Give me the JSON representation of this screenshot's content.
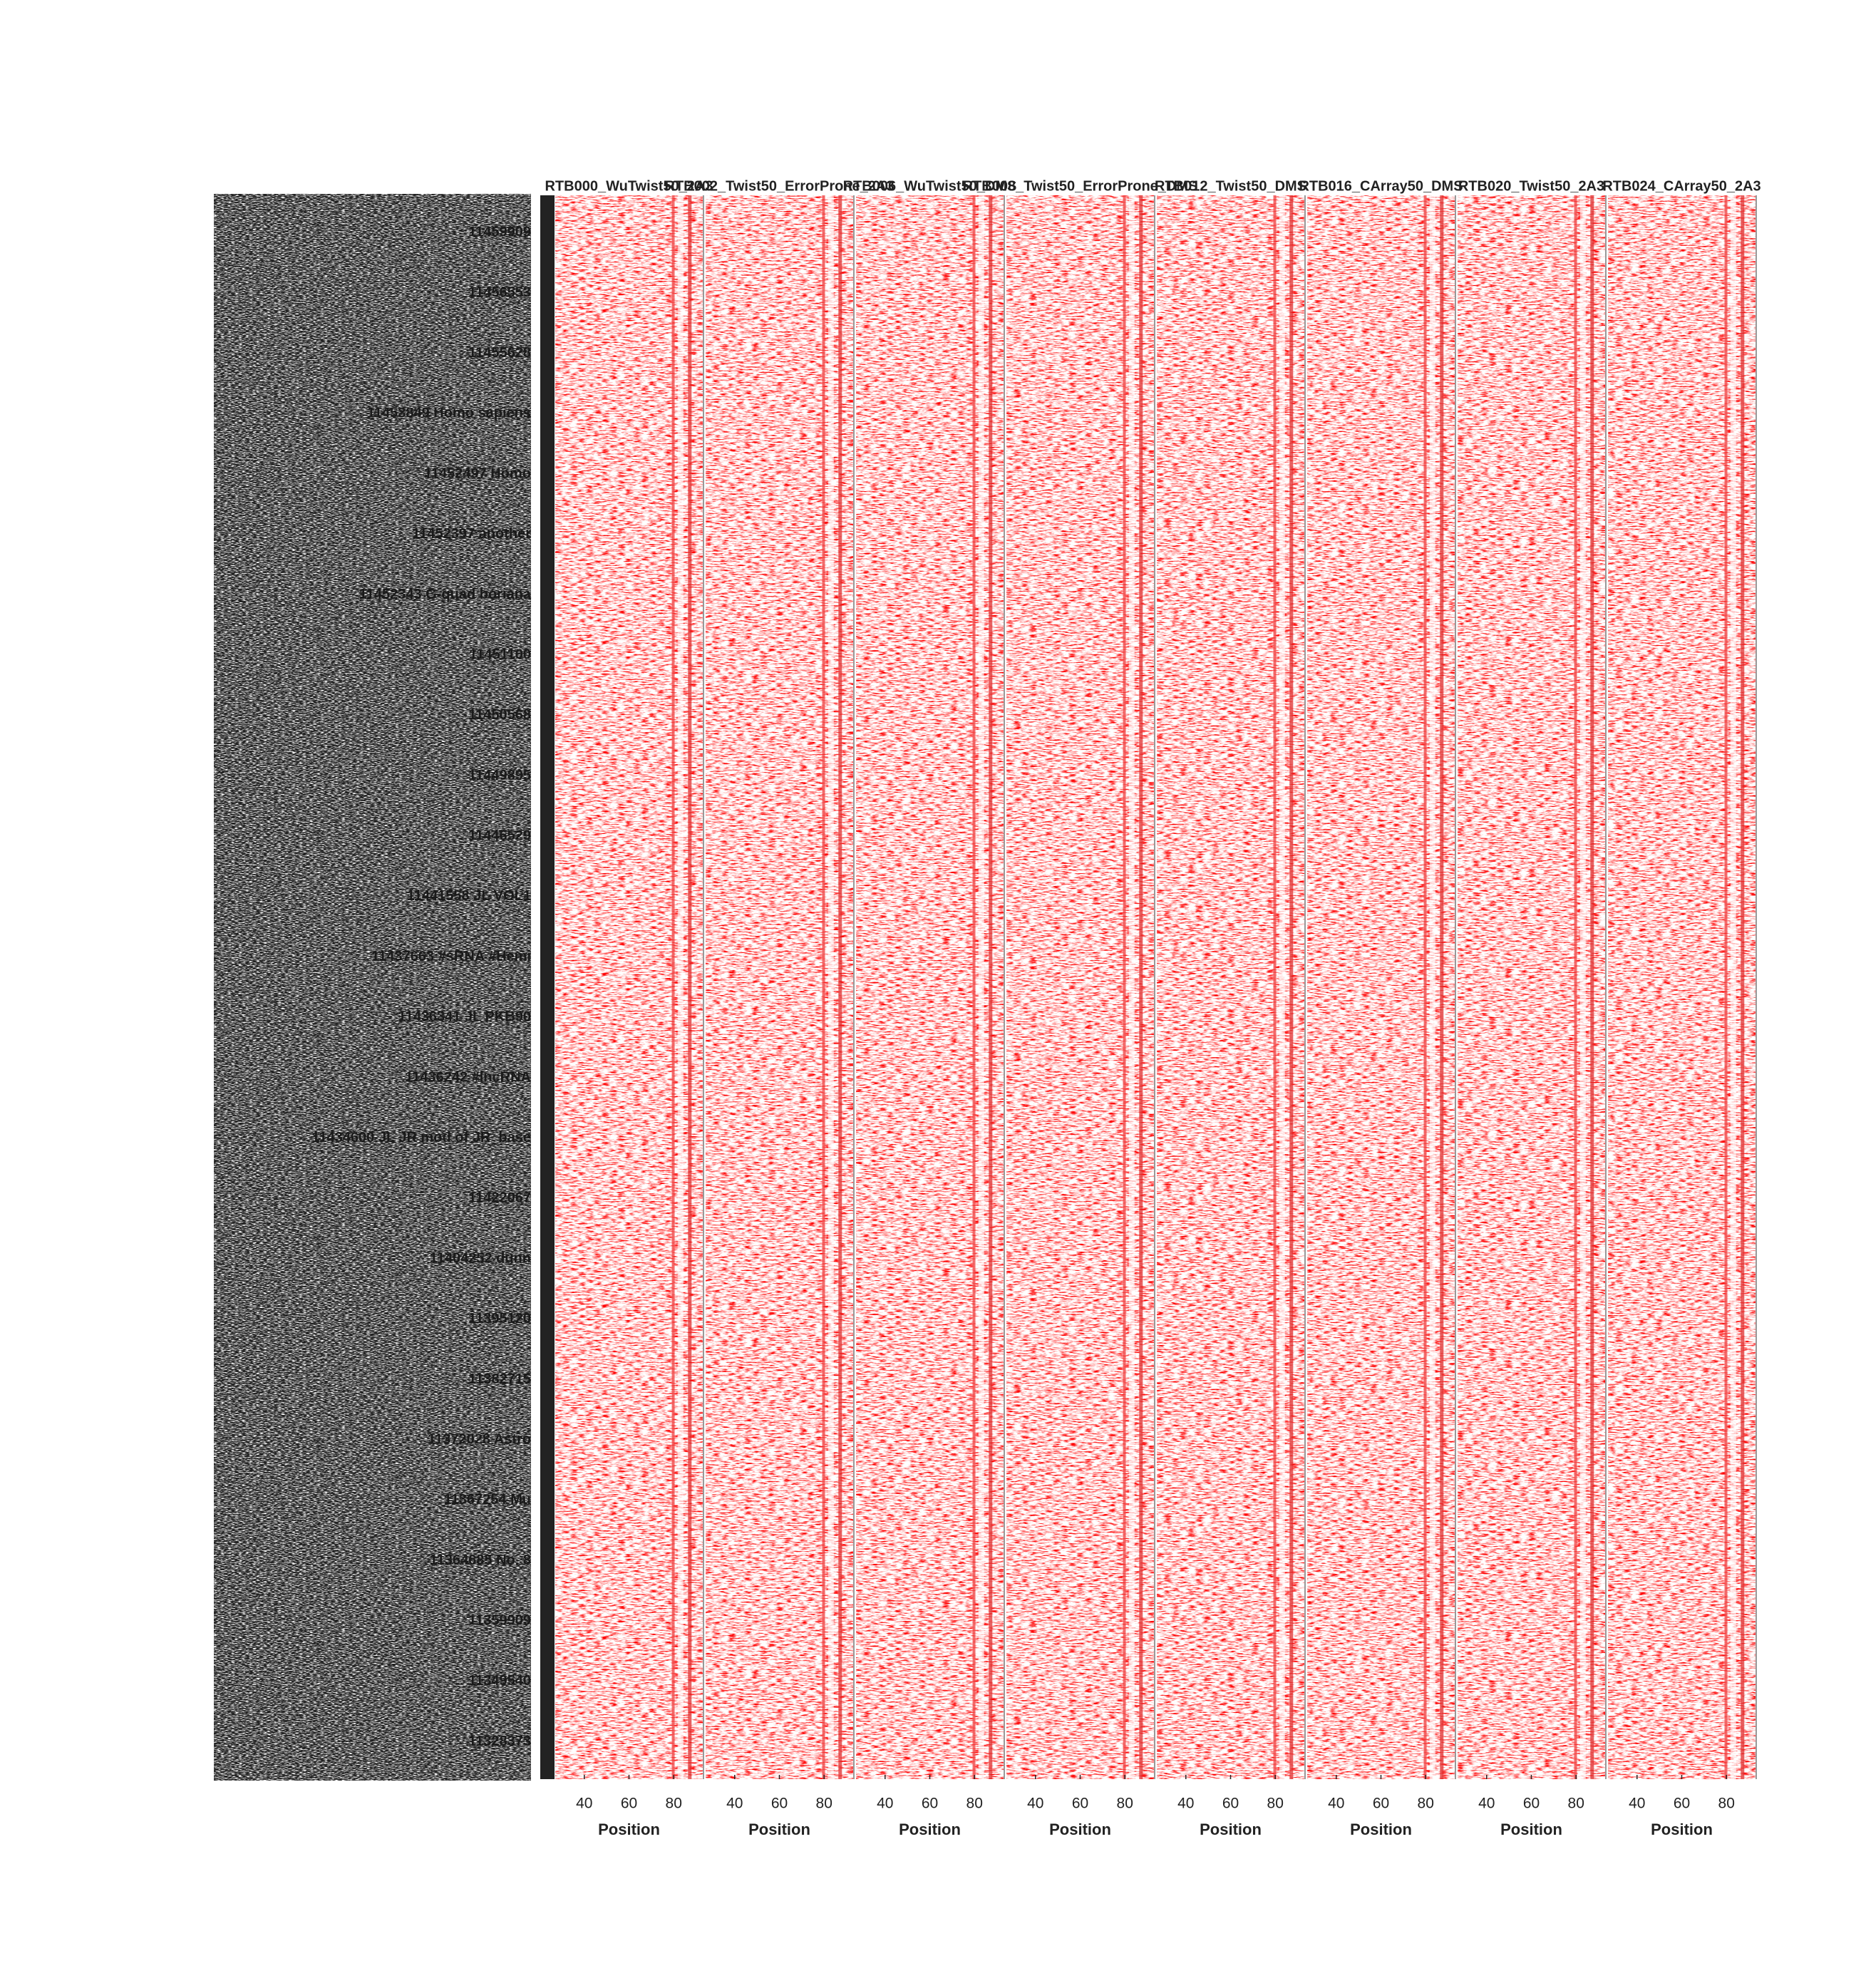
{
  "chart_data": {
    "type": "heatmap",
    "xlabel": "Position",
    "xlim": [
      27,
      93
    ],
    "xticks": [
      40,
      60,
      80
    ],
    "panels": [
      {
        "title": "RTB000_WuTwist50_2A3"
      },
      {
        "title": "RTB002_Twist50_ErrorProne_2A3"
      },
      {
        "title": "RTB006_WuTwist50_DMS"
      },
      {
        "title": "RTB008_Twist50_ErrorProne_DMS"
      },
      {
        "title": "RTB012_Twist50_DMS"
      },
      {
        "title": "RTB016_CArray50_DMS"
      },
      {
        "title": "RTB020_Twist50_2A3"
      },
      {
        "title": "RTB024_CArray50_2A3"
      }
    ],
    "row_labels": [
      "11459909",
      "11456553",
      "11455628",
      "11453849  Homo sapiens",
      "11452497  Homo",
      "11452397  another",
      "11452343  G-quad boriana",
      "11451100",
      "11450568",
      "11449895",
      "11446529",
      "11441558  JL VOL1",
      "11437663  #sRNA #Hemi",
      "11436341  JL PKB90",
      "11436242  #lncRNA",
      "11434600  JL JR mod of JR_base",
      "11422067",
      "11404252  dunn",
      "11395120",
      "11382715",
      "11372028  Astro",
      "11367254  Mu",
      "11364685  No. 8",
      "11359909",
      "11349540",
      "11328373"
    ]
  }
}
